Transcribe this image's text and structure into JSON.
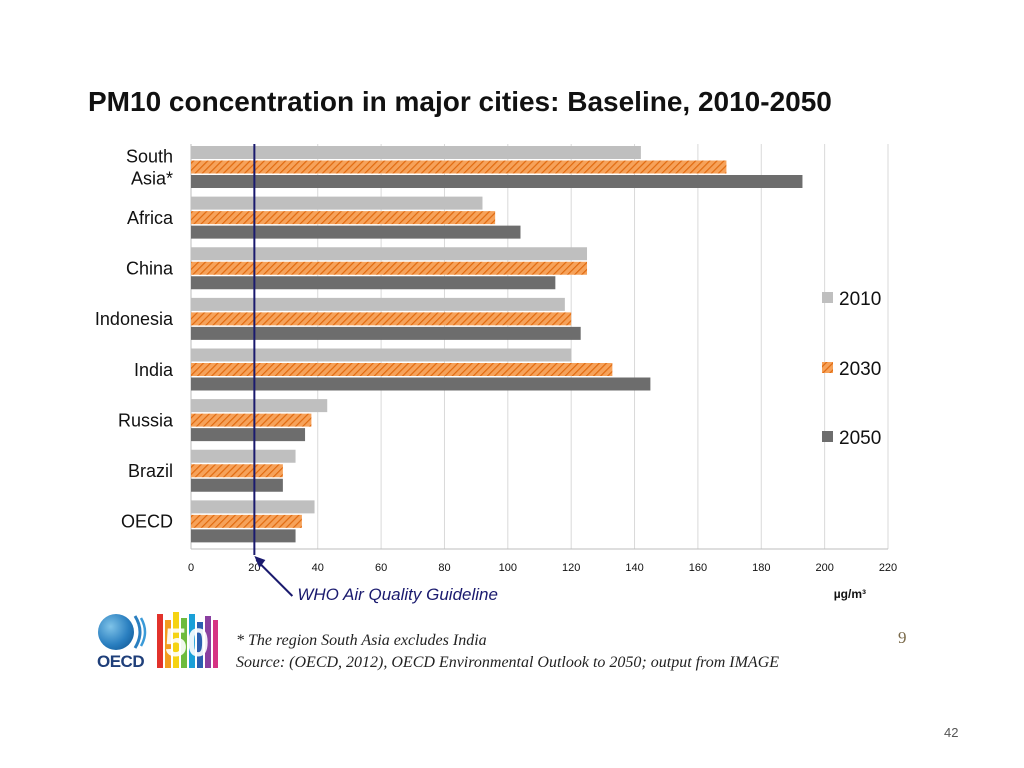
{
  "slide": {
    "title": "PM10 concentration in major cities: Baseline, 2010-2050",
    "inner_slide_number": "9",
    "page_number": "42"
  },
  "footnote": {
    "line1": "* The region South Asia excludes India",
    "line2": "Source: (OECD, 2012), OECD Environmental Outlook  to 2050; output from IMAGE"
  },
  "logo": {
    "organization": "OECD",
    "anniversary": "50"
  },
  "chart_data": {
    "type": "bar",
    "orientation": "horizontal",
    "title": "PM10 concentration in major cities: Baseline, 2010-2050",
    "categories": [
      [
        "South",
        "Asia*"
      ],
      [
        "Africa"
      ],
      [
        "China"
      ],
      [
        "Indonesia"
      ],
      [
        "India"
      ],
      [
        "Russia"
      ],
      [
        "Brazil"
      ],
      [
        "OECD"
      ]
    ],
    "series": [
      {
        "name": "2010",
        "color": "#bfbfbf",
        "pattern": "solid",
        "values": [
          142,
          92,
          125,
          118,
          120,
          43,
          33,
          39
        ]
      },
      {
        "name": "2030",
        "color": "#f08a30",
        "pattern": "hatched",
        "values": [
          169,
          96,
          125,
          120,
          133,
          38,
          29,
          35
        ]
      },
      {
        "name": "2050",
        "color": "#6d6d6d",
        "pattern": "solid",
        "values": [
          193,
          104,
          115,
          123,
          145,
          36,
          29,
          33
        ]
      }
    ],
    "xlim": [
      0,
      220
    ],
    "xticks": [
      0,
      20,
      40,
      60,
      80,
      100,
      120,
      140,
      160,
      180,
      200,
      220
    ],
    "unit_label": "µg/m³",
    "grid": "vertical",
    "legend": "right",
    "reference_line": {
      "value": 20,
      "label": "WHO Air Quality Guideline",
      "color": "#1a1a6e"
    }
  }
}
